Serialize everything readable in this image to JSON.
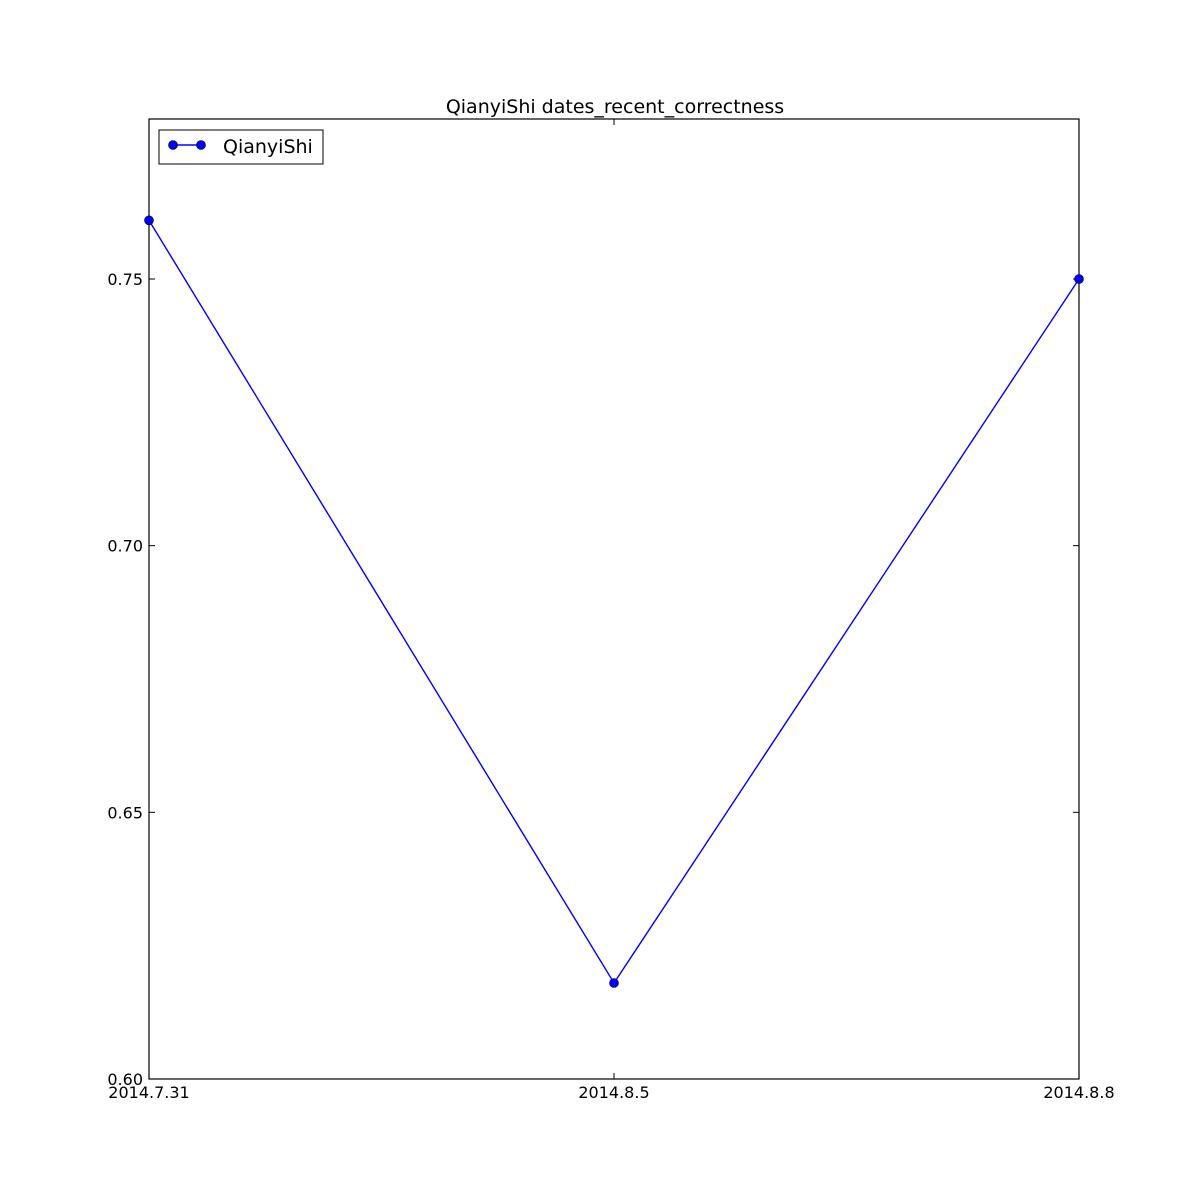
{
  "chart_data": {
    "type": "line",
    "title": "QianyiShi  dates_recent_correctness",
    "xlabel": "",
    "ylabel": "",
    "categories": [
      "2014.7.31",
      "2014.8.5",
      "2014.8.8"
    ],
    "series": [
      {
        "name": "QianyiShi",
        "values": [
          0.761,
          0.618,
          0.75
        ],
        "color": "#0000ff",
        "marker": "circle"
      }
    ],
    "ylim": [
      0.6,
      0.78
    ],
    "yticks": [
      "0.60",
      "0.65",
      "0.70",
      "0.75"
    ],
    "ytick_values": [
      0.6,
      0.65,
      0.7,
      0.75
    ],
    "grid": false,
    "legend_position": "upper-left"
  }
}
